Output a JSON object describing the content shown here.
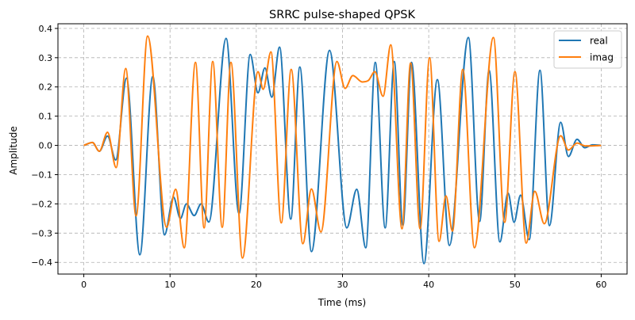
{
  "chart_data": {
    "type": "line",
    "title": "SRRC pulse-shaped QPSK",
    "xlabel": "Time (ms)",
    "ylabel": "Amplitude",
    "xlim": [
      -3,
      63
    ],
    "ylim": [
      -0.44,
      0.416
    ],
    "xticks": [
      0,
      10,
      20,
      30,
      40,
      50,
      60
    ],
    "xtick_labels": [
      "0",
      "10",
      "20",
      "30",
      "40",
      "50",
      "60"
    ],
    "yticks": [
      -0.4,
      -0.3,
      -0.2,
      -0.1,
      0.0,
      0.1,
      0.2,
      0.3,
      0.4
    ],
    "ytick_labels": [
      "−0.4",
      "−0.3",
      "−0.2",
      "−0.1",
      "0.0",
      "0.1",
      "0.2",
      "0.3",
      "0.4"
    ],
    "grid": true,
    "legend_position": "top-right",
    "series": [
      {
        "name": "real",
        "color": "#1f77b4",
        "points": [
          [
            0,
            0
          ],
          [
            1.0,
            0.01
          ],
          [
            1.8,
            -0.02
          ],
          [
            2.75,
            0.032
          ],
          [
            3.7,
            -0.05
          ],
          [
            4.95,
            0.23
          ],
          [
            6.5,
            -0.374
          ],
          [
            8.0,
            0.236
          ],
          [
            9.36,
            -0.306
          ],
          [
            10.4,
            -0.177
          ],
          [
            11.2,
            -0.25
          ],
          [
            11.9,
            -0.2
          ],
          [
            12.8,
            -0.24
          ],
          [
            13.6,
            -0.2
          ],
          [
            14.5,
            -0.262
          ],
          [
            16.5,
            0.366
          ],
          [
            18.0,
            -0.233
          ],
          [
            19.3,
            0.311
          ],
          [
            20.2,
            0.18
          ],
          [
            21.0,
            0.265
          ],
          [
            21.8,
            0.165
          ],
          [
            22.7,
            0.336
          ],
          [
            24.0,
            -0.252
          ],
          [
            25.05,
            0.268
          ],
          [
            26.4,
            -0.363
          ],
          [
            28.5,
            0.325
          ],
          [
            30.5,
            -0.282
          ],
          [
            31.65,
            -0.15
          ],
          [
            32.7,
            -0.35
          ],
          [
            33.8,
            0.284
          ],
          [
            34.95,
            -0.282
          ],
          [
            36.0,
            0.287
          ],
          [
            37.0,
            -0.274
          ],
          [
            38.0,
            0.284
          ],
          [
            39.45,
            -0.404
          ],
          [
            41.0,
            0.225
          ],
          [
            42.4,
            -0.342
          ],
          [
            44.6,
            0.369
          ],
          [
            45.9,
            -0.26
          ],
          [
            47.0,
            0.257
          ],
          [
            48.25,
            -0.33
          ],
          [
            49.2,
            -0.163
          ],
          [
            49.9,
            -0.263
          ],
          [
            50.65,
            -0.17
          ],
          [
            51.65,
            -0.322
          ],
          [
            52.9,
            0.257
          ],
          [
            54.0,
            -0.274
          ],
          [
            55.3,
            0.079
          ],
          [
            56.2,
            -0.038
          ],
          [
            57.2,
            0.021
          ],
          [
            58.1,
            -0.008
          ],
          [
            59.0,
            0.002
          ],
          [
            60,
            0
          ]
        ]
      },
      {
        "name": "imag",
        "color": "#ff7f0e",
        "points": [
          [
            0,
            0
          ],
          [
            1.0,
            0.01
          ],
          [
            1.8,
            -0.02
          ],
          [
            2.75,
            0.045
          ],
          [
            3.75,
            -0.076
          ],
          [
            4.86,
            0.263
          ],
          [
            6.06,
            -0.241
          ],
          [
            7.4,
            0.374
          ],
          [
            9.6,
            -0.28
          ],
          [
            10.65,
            -0.15
          ],
          [
            11.65,
            -0.35
          ],
          [
            12.95,
            0.284
          ],
          [
            13.95,
            -0.282
          ],
          [
            14.95,
            0.287
          ],
          [
            16.05,
            -0.28
          ],
          [
            17.06,
            0.284
          ],
          [
            18.4,
            -0.385
          ],
          [
            20.2,
            0.252
          ],
          [
            20.8,
            0.192
          ],
          [
            21.7,
            0.32
          ],
          [
            22.9,
            -0.265
          ],
          [
            24.05,
            0.26
          ],
          [
            25.4,
            -0.336
          ],
          [
            26.4,
            -0.149
          ],
          [
            27.5,
            -0.296
          ],
          [
            29.35,
            0.287
          ],
          [
            30.3,
            0.195
          ],
          [
            31.2,
            0.239
          ],
          [
            32.3,
            0.217
          ],
          [
            33.0,
            0.222
          ],
          [
            33.75,
            0.252
          ],
          [
            34.7,
            0.168
          ],
          [
            35.6,
            0.344
          ],
          [
            36.9,
            -0.285
          ],
          [
            37.9,
            0.282
          ],
          [
            39.0,
            -0.285
          ],
          [
            40.1,
            0.3
          ],
          [
            41.2,
            -0.328
          ],
          [
            42.0,
            -0.173
          ],
          [
            42.75,
            -0.293
          ],
          [
            43.95,
            0.26
          ],
          [
            45.3,
            -0.35
          ],
          [
            47.5,
            0.369
          ],
          [
            48.8,
            -0.263
          ],
          [
            50.0,
            0.252
          ],
          [
            51.3,
            -0.334
          ],
          [
            52.3,
            -0.157
          ],
          [
            53.4,
            -0.268
          ],
          [
            55.3,
            0.033
          ],
          [
            56.2,
            -0.016
          ],
          [
            57.2,
            0.008
          ],
          [
            58.2,
            -0.002
          ],
          [
            60,
            0
          ]
        ]
      }
    ]
  }
}
